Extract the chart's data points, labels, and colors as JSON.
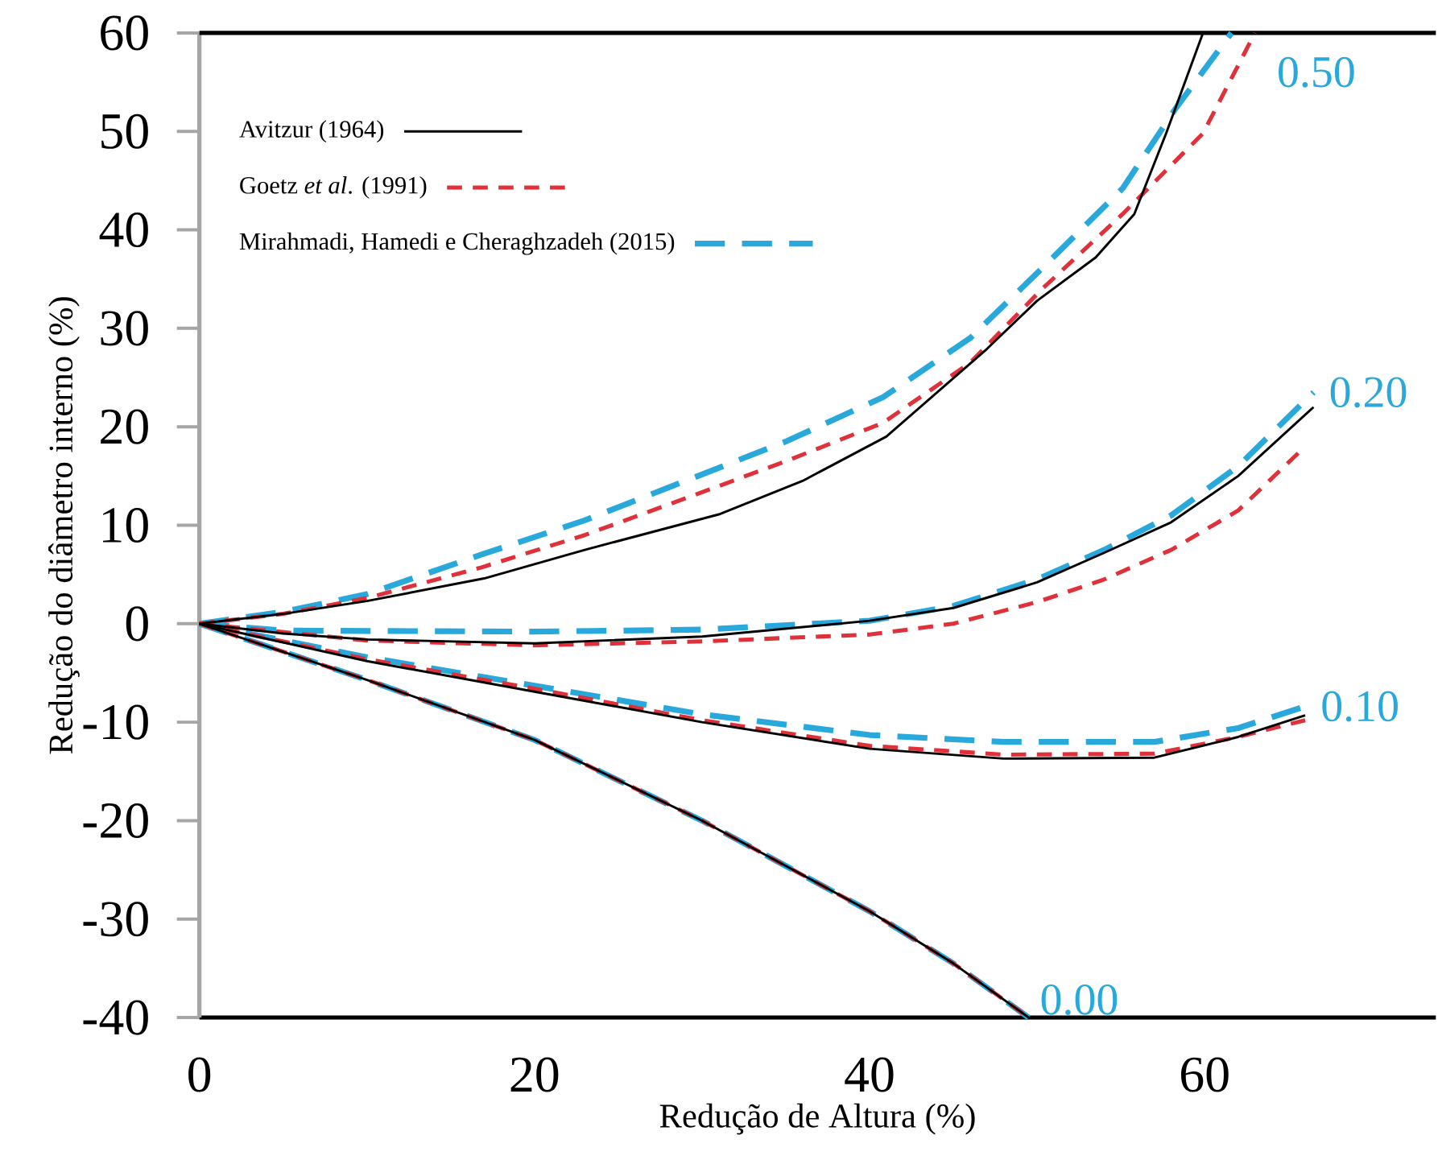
{
  "chart_data": {
    "type": "line",
    "xlabel": "Redução de Altura (%)",
    "ylabel": "Redução do diâmetro interno (%)",
    "xlim": [
      0,
      73.8
    ],
    "ylim": [
      -40,
      60
    ],
    "xticks": [
      0,
      20,
      40,
      60
    ],
    "yticks": [
      -40,
      -30,
      -20,
      -10,
      0,
      10,
      20,
      30,
      40,
      50,
      60
    ],
    "legend": "top left",
    "grid": false,
    "marker": "none",
    "series": [
      {
        "name": "Avitzur (1964)",
        "color": "#000000",
        "line_style": "solid",
        "x": [
          0,
          5,
          10,
          17,
          23,
          31,
          36,
          41,
          47,
          50,
          53.5,
          55.8,
          57.7,
          59.9
        ],
        "values": [
          0,
          1,
          2.3,
          4.6,
          7.5,
          11.1,
          14.5,
          19,
          27.9,
          32.8,
          37.2,
          41.6,
          49.8,
          60
        ]
      },
      {
        "color": "#000000",
        "line_style": "solid",
        "x": [
          0,
          5,
          10,
          20,
          30,
          40,
          45,
          50,
          54,
          58,
          62,
          66.5
        ],
        "values": [
          0,
          -1,
          -1.6,
          -2.0,
          -1.3,
          0.3,
          1.6,
          4.2,
          7.2,
          10.3,
          15,
          22
        ]
      },
      {
        "color": "#000000",
        "line_style": "solid",
        "x": [
          0,
          10,
          20,
          30,
          40,
          48,
          57,
          62,
          66
        ],
        "values": [
          0,
          -3.8,
          -6.9,
          -10,
          -12.7,
          -13.7,
          -13.6,
          -11.5,
          -9.3
        ]
      },
      {
        "color": "#000000",
        "line_style": "solid",
        "x": [
          0,
          10,
          20,
          30,
          40,
          45,
          49.5
        ],
        "values": [
          0,
          -5.7,
          -11.8,
          -20,
          -29.2,
          -34.5,
          -40
        ]
      },
      {
        "name": "Goetz *et al*. (1991)",
        "color": "#e0303a",
        "line_style": "dashed",
        "x": [
          0,
          5,
          10,
          16.8,
          23,
          29.6,
          35,
          40.8,
          46,
          50.3,
          55.1,
          59.9,
          63
        ],
        "values": [
          0,
          1,
          2.6,
          5.7,
          9,
          13.1,
          16.5,
          20.4,
          26.5,
          34,
          41.6,
          49.8,
          60
        ]
      },
      {
        "color": "#e0303a",
        "line_style": "dashed",
        "x": [
          0,
          10,
          20,
          30,
          40,
          45,
          50,
          54,
          58,
          62,
          66
        ],
        "values": [
          0,
          -1.7,
          -2.2,
          -1.8,
          -1.1,
          0,
          2.2,
          4.5,
          7.5,
          11.5,
          18
        ]
      },
      {
        "color": "#e0303a",
        "line_style": "dashed",
        "x": [
          0,
          10,
          20,
          30,
          40,
          48,
          57,
          62,
          66
        ],
        "values": [
          0,
          -3.6,
          -6.6,
          -9.8,
          -12.4,
          -13.3,
          -13.2,
          -11.5,
          -9.8
        ]
      },
      {
        "color": "#e0303a",
        "line_style": "dashed",
        "x": [
          0,
          10,
          20,
          30,
          40,
          45,
          49.5
        ],
        "values": [
          0,
          -5.7,
          -11.8,
          -20,
          -29.2,
          -34.5,
          -40
        ]
      },
      {
        "name": "Mirahmadi, Hamedi e Cheraghzadeh (2015)",
        "color": "#29a8dc",
        "line_style": "dashed",
        "x": [
          0,
          5,
          10,
          16.8,
          23,
          29.6,
          35,
          40.8,
          46,
          50.3,
          55.1,
          58.3,
          61.6
        ],
        "values": [
          0,
          1.2,
          3,
          7,
          10.5,
          14.9,
          18.5,
          23,
          29,
          36.1,
          44.2,
          52.4,
          60
        ]
      },
      {
        "color": "#29a8dc",
        "line_style": "dashed",
        "x": [
          0,
          5,
          20,
          30,
          40,
          45,
          50,
          54,
          58,
          62,
          66.5
        ],
        "values": [
          0,
          -0.7,
          -0.8,
          -0.6,
          0.3,
          1.8,
          4.5,
          7.5,
          11,
          16,
          23.5
        ]
      },
      {
        "color": "#29a8dc",
        "line_style": "dashed",
        "x": [
          0,
          10,
          20,
          30,
          40,
          48,
          57,
          62,
          66
        ],
        "values": [
          0,
          -3.4,
          -6.3,
          -9.2,
          -11.3,
          -12.0,
          -12.0,
          -10.6,
          -8.4
        ]
      },
      {
        "color": "#29a8dc",
        "line_style": "dashed",
        "x": [
          0,
          10,
          20,
          30,
          40,
          45,
          49.5
        ],
        "values": [
          0,
          -5.7,
          -11.8,
          -20,
          -29.2,
          -34.5,
          -40
        ]
      }
    ],
    "annotations": [
      "0.50",
      "0.20",
      "0.10",
      "0.00"
    ]
  }
}
